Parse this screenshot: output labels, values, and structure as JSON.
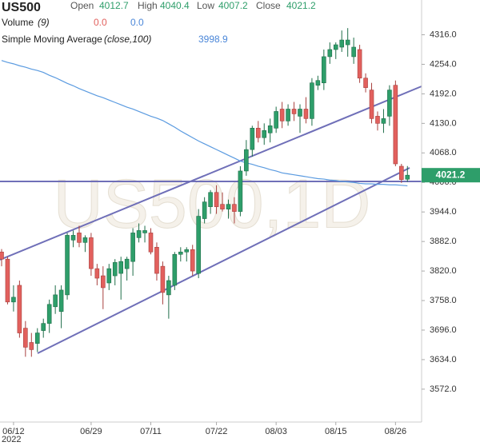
{
  "header": {
    "symbol": "US500",
    "open_label": "Open",
    "high_label": "High",
    "low_label": "Low",
    "close_label": "Close",
    "volume_label": "Volume",
    "volume_param": "(9)",
    "volume_value_1": "0.0",
    "volume_value_2": "0.0",
    "sma_label": "Simple Moving Average",
    "sma_param": "(close,100)",
    "sma_value": "3998.9"
  },
  "chart_data": {
    "type": "candlestick",
    "watermark": "US500,1D",
    "x_year_label": "2022",
    "up_color": "#2e9e6a",
    "down_color": "#e2605d",
    "sma_color": "#5b9be0",
    "categories": [
      null,
      null,
      "06/12",
      null,
      null,
      null,
      null,
      null,
      null,
      null,
      null,
      null,
      null,
      null,
      null,
      "06/29",
      null,
      null,
      null,
      null,
      null,
      null,
      null,
      null,
      null,
      "07/11",
      null,
      null,
      null,
      null,
      null,
      null,
      null,
      null,
      null,
      null,
      "07/22",
      null,
      null,
      null,
      null,
      null,
      null,
      null,
      null,
      null,
      "08/03",
      null,
      null,
      null,
      null,
      null,
      null,
      null,
      null,
      null,
      "08/15",
      null,
      null,
      null,
      null,
      null,
      null,
      null,
      null,
      null,
      "08/26",
      null,
      null
    ],
    "open": [
      3860,
      3845,
      3755,
      3790,
      3700,
      3670,
      3668,
      3695,
      3710,
      3745,
      3735,
      3770,
      3885,
      3900,
      3880,
      3890,
      3825,
      3810,
      3795,
      3810,
      3815,
      3825,
      3840,
      3890,
      3900,
      3900,
      3870,
      3830,
      3770,
      3790,
      3855,
      3860,
      3865,
      3815,
      3930,
      3955,
      3985,
      3960,
      3950,
      3960,
      3945,
      4030,
      4075,
      4120,
      4100,
      4110,
      4120,
      4160,
      4135,
      4160,
      4145,
      4160,
      4140,
      4210,
      4215,
      4270,
      4285,
      4290,
      4295,
      4270,
      4285,
      4225,
      4200,
      4145,
      4130,
      4145,
      4210,
      4040,
      4012.7
    ],
    "high": [
      3866,
      3850,
      3790,
      3800,
      3715,
      3690,
      3700,
      3720,
      3760,
      3790,
      3790,
      3900,
      3905,
      3915,
      3895,
      3900,
      3835,
      3830,
      3835,
      3845,
      3850,
      3850,
      3910,
      3920,
      3915,
      3910,
      3880,
      3840,
      3810,
      3860,
      3870,
      3870,
      3875,
      3950,
      3975,
      3990,
      4000,
      3985,
      3970,
      3975,
      4040,
      4095,
      4125,
      4135,
      4130,
      4140,
      4165,
      4175,
      4170,
      4175,
      4170,
      4185,
      4225,
      4230,
      4285,
      4300,
      4300,
      4325,
      4330,
      4310,
      4295,
      4235,
      4215,
      4155,
      4160,
      4210,
      4220,
      4045,
      4040.4
    ],
    "low": [
      3830,
      3750,
      3735,
      3680,
      3640,
      3640,
      3650,
      3680,
      3690,
      3730,
      3700,
      3760,
      3870,
      3870,
      3860,
      3810,
      3790,
      3740,
      3780,
      3790,
      3760,
      3800,
      3810,
      3880,
      3880,
      3855,
      3800,
      3750,
      3720,
      3780,
      3840,
      3840,
      3810,
      3805,
      3920,
      3940,
      3940,
      3945,
      3930,
      3920,
      3935,
      4020,
      4060,
      4090,
      4085,
      4090,
      4110,
      4120,
      4125,
      4135,
      4110,
      4130,
      4125,
      4200,
      4200,
      4255,
      4265,
      4280,
      4270,
      4255,
      4215,
      4195,
      4130,
      4115,
      4110,
      4125,
      4040,
      4005,
      4007.2
    ],
    "close": [
      3845,
      3755,
      3765,
      3690,
      3660,
      3655,
      3690,
      3710,
      3750,
      3770,
      3780,
      3895,
      3895,
      3880,
      3890,
      3825,
      3805,
      3785,
      3825,
      3838,
      3840,
      3845,
      3900,
      3905,
      3905,
      3860,
      3815,
      3775,
      3800,
      3855,
      3860,
      3865,
      3820,
      3935,
      3965,
      3985,
      3955,
      3950,
      3960,
      3945,
      4030,
      4075,
      4120,
      4100,
      4115,
      4125,
      4155,
      4135,
      4160,
      4150,
      4160,
      4140,
      4215,
      4220,
      4270,
      4285,
      4295,
      4305,
      4305,
      4290,
      4225,
      4205,
      4140,
      4130,
      4140,
      4200,
      4045,
      4012,
      4021.2
    ],
    "sma": [
      4262,
      4258,
      4255,
      4251,
      4248,
      4244,
      4241,
      4237,
      4231,
      4226,
      4220,
      4214,
      4209,
      4203,
      4198,
      4193,
      4188,
      4184,
      4179,
      4174,
      4169,
      4164,
      4160,
      4155,
      4150,
      4145,
      4141,
      4136,
      4129,
      4122,
      4114,
      4107,
      4100,
      4093,
      4087,
      4081,
      4075,
      4069,
      4063,
      4057,
      4051,
      4047,
      4044,
      4040,
      4037,
      4033,
      4030,
      4026,
      4024,
      4022,
      4020,
      4018,
      4016,
      4014,
      4013,
      4011,
      4010,
      4008,
      4007,
      4006,
      4004,
      4003,
      4003,
      4002,
      4002,
      4001,
      4001,
      4000,
      3998.9
    ],
    "ylim": [
      3503,
      4389
    ],
    "yticks": [
      {
        "value": 3572,
        "label": "3572.0"
      },
      {
        "value": 3634,
        "label": "3634.0"
      },
      {
        "value": 3696,
        "label": "3696.0"
      },
      {
        "value": 3758,
        "label": "3758.0"
      },
      {
        "value": 3820,
        "label": "3820.0"
      },
      {
        "value": 3882,
        "label": "3882.0"
      },
      {
        "value": 3944,
        "label": "3944.0"
      },
      {
        "value": 4006,
        "label": "4006.0"
      },
      {
        "value": 4068,
        "label": "4068.0"
      },
      {
        "value": 4130,
        "label": "4130.0"
      },
      {
        "value": 4192,
        "label": "4192.0"
      },
      {
        "value": 4254,
        "label": "4254.0"
      },
      {
        "value": 4316,
        "label": "4316.0"
      }
    ]
  }
}
